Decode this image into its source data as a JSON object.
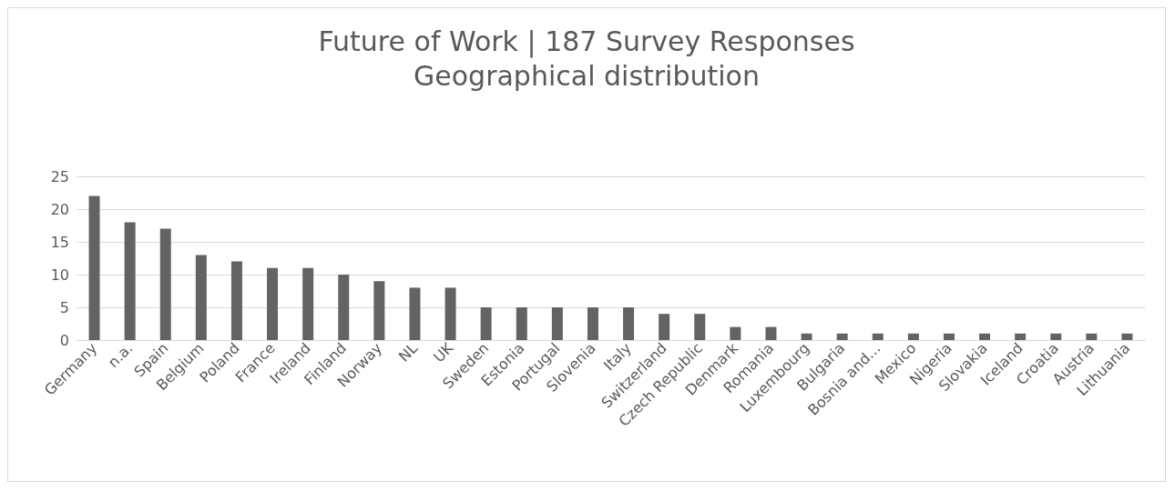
{
  "chart_data": {
    "type": "bar",
    "title": "Future of Work | 187 Survey Responses\nGeographical distribution",
    "categories": [
      "Germany",
      "n.a.",
      "Spain",
      "Belgium",
      "Poland",
      "France",
      "Ireland",
      "Finland",
      "Norway",
      "NL",
      "UK",
      "Sweden",
      "Estonia",
      "Portugal",
      "Slovenia",
      "Italy",
      "Switzerland",
      "Czech Republic",
      "Denmark",
      "Romania",
      "Luxembourg",
      "Bulgaria",
      "Bosnia and…",
      "Mexico",
      "Nigeria",
      "Slovakia",
      "Iceland",
      "Croatia",
      "Austria",
      "Lithuania"
    ],
    "values": [
      22,
      18,
      17,
      13,
      12,
      11,
      11,
      10,
      9,
      8,
      8,
      5,
      5,
      5,
      5,
      5,
      4,
      4,
      2,
      2,
      1,
      1,
      1,
      1,
      1,
      1,
      1,
      1,
      1,
      1
    ],
    "color": "#636363",
    "ylim": [
      0,
      25
    ],
    "yticks": [
      0,
      5,
      10,
      15,
      20,
      25
    ],
    "grid": "y"
  }
}
